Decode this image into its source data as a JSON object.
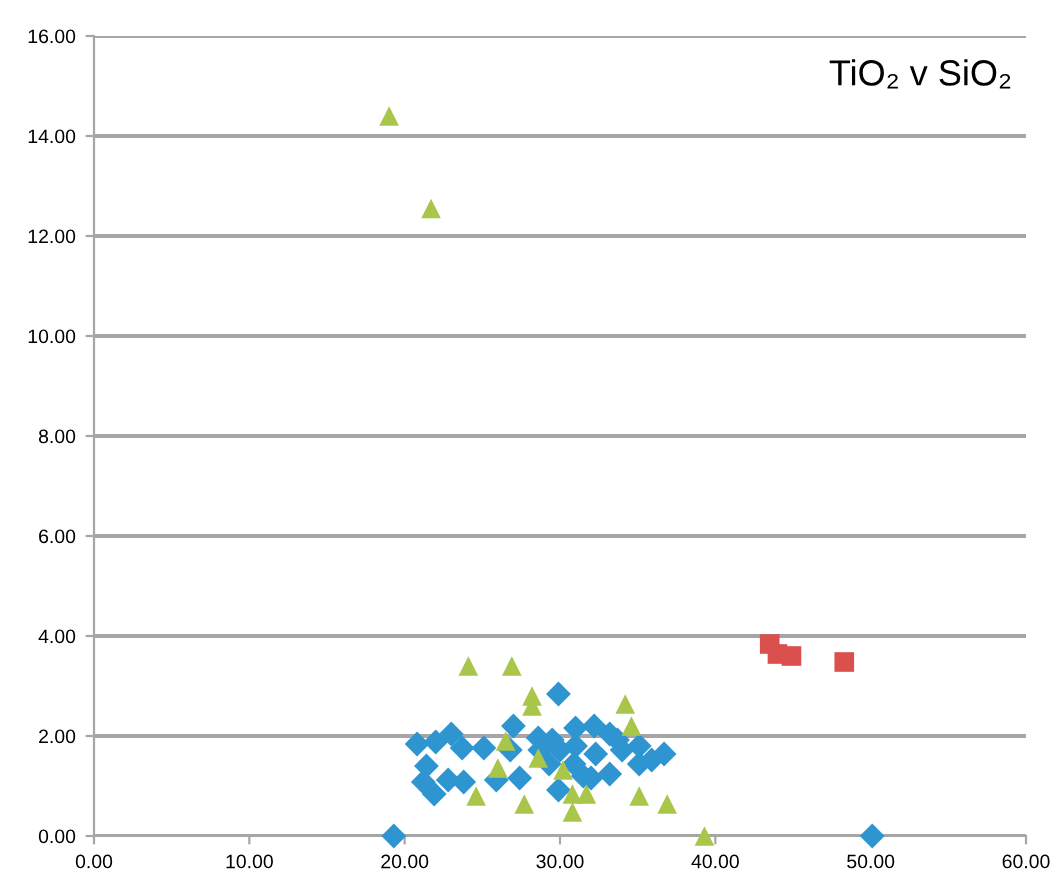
{
  "chart_data": {
    "type": "scatter",
    "title": "TiO₂ v SiO₂",
    "series": [
      {
        "color": "#2e95d0",
        "marker": "diamond",
        "x": [
          29.9,
          19.3,
          50.1,
          20.8,
          22.0,
          23.0,
          23.7,
          25.1,
          27.0,
          26.8,
          28.6,
          29.5,
          31.0,
          32.2,
          33.2,
          32.3,
          31.0,
          30.0,
          29.3,
          30.9,
          31.5,
          32.0,
          33.2,
          35.1,
          35.1,
          35.9,
          36.7,
          21.4,
          21.2,
          21.9,
          22.8,
          23.8,
          25.9,
          27.4,
          29.9,
          33.7,
          34.0,
          28.7
        ],
        "values": [
          2.84,
          0,
          0,
          1.84,
          1.88,
          2.04,
          1.76,
          1.76,
          2.2,
          1.72,
          1.96,
          1.92,
          2.16,
          2.2,
          2.04,
          1.64,
          1.8,
          1.72,
          1.44,
          1.44,
          1.2,
          1.16,
          1.24,
          1.8,
          1.44,
          1.52,
          1.64,
          1.4,
          1.08,
          0.84,
          1.12,
          1.08,
          1.12,
          1.16,
          0.92,
          1.92,
          1.72,
          1.72
        ]
      },
      {
        "color": "#d9504d",
        "marker": "square",
        "x": [
          43.5,
          44.0,
          44.9,
          48.3
        ],
        "values": [
          3.84,
          3.64,
          3.6,
          3.48
        ]
      },
      {
        "color": "#a9c64a",
        "marker": "triangle",
        "x": [
          19.0,
          21.7,
          24.1,
          26.9,
          28.2,
          28.2,
          34.2,
          34.6,
          26.5,
          28.6,
          26.0,
          24.6,
          27.7,
          30.8,
          31.7,
          30.8,
          35.1,
          36.9,
          30.2,
          39.3
        ],
        "values": [
          14.4,
          12.55,
          3.4,
          3.4,
          2.8,
          2.6,
          2.64,
          2.2,
          1.9,
          1.56,
          1.36,
          0.8,
          0.64,
          0.84,
          0.84,
          0.48,
          0.8,
          0.64,
          1.32,
          0
        ]
      }
    ],
    "xlim": [
      0,
      60
    ],
    "ylim": [
      0,
      16
    ],
    "xticks": [
      {
        "value": 0,
        "label": "0.00"
      },
      {
        "value": 10,
        "label": "10.00"
      },
      {
        "value": 20,
        "label": "20.00"
      },
      {
        "value": 30,
        "label": "30.00"
      },
      {
        "value": 40,
        "label": "40.00"
      },
      {
        "value": 50,
        "label": "50.00"
      },
      {
        "value": 60,
        "label": "60.00"
      }
    ],
    "yticks": [
      {
        "value": 0,
        "label": "0.00"
      },
      {
        "value": 2,
        "label": "2.00"
      },
      {
        "value": 4,
        "label": "4.00"
      },
      {
        "value": 6,
        "label": "6.00"
      },
      {
        "value": 8,
        "label": "8.00"
      },
      {
        "value": 10,
        "label": "10.00"
      },
      {
        "value": 12,
        "label": "12.00"
      },
      {
        "value": 14,
        "label": "14.00"
      },
      {
        "value": 16,
        "label": "16.00"
      }
    ],
    "grid": "y"
  }
}
